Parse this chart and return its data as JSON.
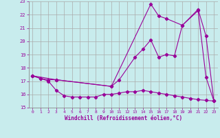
{
  "xlabel": "Windchill (Refroidissement éolien,°C)",
  "bg_color": "#c8eced",
  "line_color": "#990099",
  "grid_color": "#aaaaaa",
  "xlim": [
    -0.5,
    23.5
  ],
  "ylim": [
    15,
    23
  ],
  "yticks": [
    15,
    16,
    17,
    18,
    19,
    20,
    21,
    22,
    23
  ],
  "xticks": [
    0,
    1,
    2,
    3,
    4,
    5,
    6,
    7,
    8,
    9,
    10,
    11,
    12,
    13,
    14,
    15,
    16,
    17,
    18,
    19,
    20,
    21,
    22,
    23
  ],
  "series1_x": [
    0,
    1,
    2,
    3,
    10,
    11,
    13,
    14,
    15,
    16,
    17,
    18,
    19,
    21,
    22,
    23
  ],
  "series1_y": [
    17.4,
    17.2,
    17.1,
    17.1,
    16.6,
    17.1,
    18.8,
    19.4,
    20.1,
    18.8,
    19.0,
    18.9,
    21.2,
    22.3,
    17.3,
    15.5
  ],
  "series2_x": [
    0,
    3,
    10,
    15,
    16,
    17,
    19,
    21,
    22,
    23
  ],
  "series2_y": [
    17.4,
    17.1,
    16.6,
    22.8,
    21.9,
    21.7,
    21.2,
    22.4,
    20.4,
    15.5
  ],
  "series3_x": [
    0,
    1,
    2,
    3,
    4,
    5,
    6,
    7,
    8,
    9,
    10,
    11,
    12,
    13,
    14,
    15,
    16,
    17,
    18,
    19,
    20,
    21,
    22,
    23
  ],
  "series3_y": [
    17.4,
    17.2,
    17.0,
    16.3,
    15.9,
    15.8,
    15.8,
    15.8,
    15.8,
    16.0,
    16.0,
    16.1,
    16.2,
    16.2,
    16.3,
    16.2,
    16.1,
    16.0,
    15.9,
    15.8,
    15.7,
    15.6,
    15.55,
    15.5
  ]
}
